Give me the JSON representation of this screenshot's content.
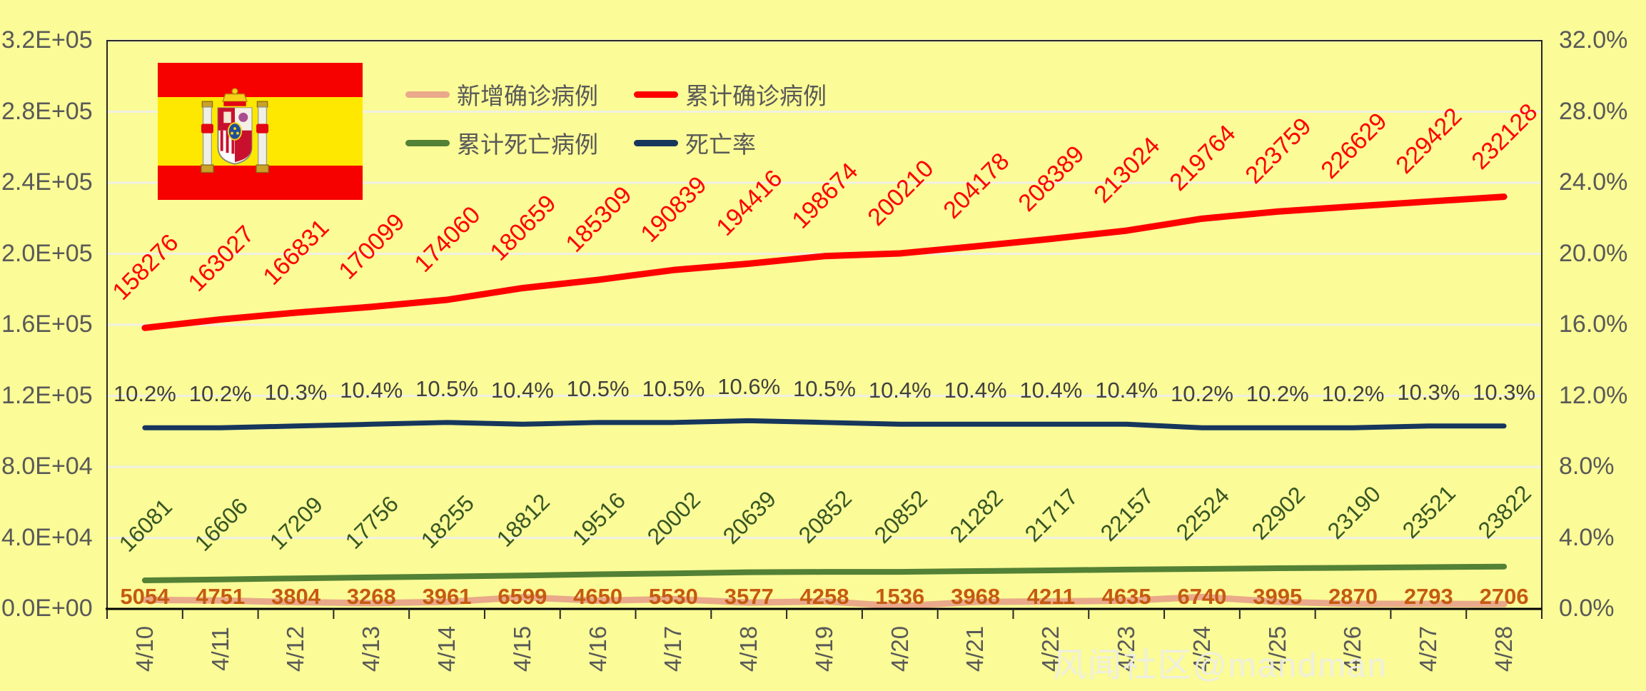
{
  "watermark": "风闻社区@mandman",
  "flag": {
    "country": "Spain"
  },
  "chart_data": {
    "type": "line",
    "x": [
      "4/10",
      "4/11",
      "4/12",
      "4/13",
      "4/14",
      "4/15",
      "4/16",
      "4/17",
      "4/18",
      "4/19",
      "4/20",
      "4/21",
      "4/22",
      "4/23",
      "4/24",
      "4/25",
      "4/26",
      "4/27",
      "4/28"
    ],
    "series": [
      {
        "id": "new-confirmed",
        "name": "新增确诊病例",
        "color": "#E9A98A",
        "axis": "left",
        "values": [
          5054,
          4751,
          3804,
          3268,
          3961,
          6599,
          4650,
          5530,
          3577,
          4258,
          1536,
          3968,
          4211,
          4635,
          6740,
          3995,
          2870,
          2793,
          2706
        ]
      },
      {
        "id": "cum-confirmed",
        "name": "累计确诊病例",
        "color": "#FE0000",
        "axis": "left",
        "values": [
          158276,
          163027,
          166831,
          170099,
          174060,
          180659,
          185309,
          190839,
          194416,
          198674,
          200210,
          204178,
          208389,
          213024,
          219764,
          223759,
          226629,
          229422,
          232128
        ]
      },
      {
        "id": "cum-deaths",
        "name": "累计死亡病例",
        "color": "#538135",
        "axis": "left",
        "values": [
          16081,
          16606,
          17209,
          17756,
          18255,
          18812,
          19516,
          20002,
          20639,
          20852,
          20852,
          21282,
          21717,
          22157,
          22524,
          22902,
          23190,
          23521,
          23822
        ]
      },
      {
        "id": "death-rate",
        "name": "死亡率",
        "color": "#16365C",
        "axis": "right",
        "values": [
          10.2,
          10.2,
          10.3,
          10.4,
          10.5,
          10.4,
          10.5,
          10.5,
          10.6,
          10.5,
          10.4,
          10.4,
          10.4,
          10.4,
          10.2,
          10.2,
          10.2,
          10.3,
          10.3
        ],
        "labels": [
          "10.2%",
          "10.2%",
          "10.3%",
          "10.4%",
          "10.5%",
          "10.4%",
          "10.5%",
          "10.5%",
          "10.6%",
          "10.5%",
          "10.4%",
          "10.4%",
          "10.4%",
          "10.4%",
          "10.2%",
          "10.2%",
          "10.2%",
          "10.3%",
          "10.3%"
        ]
      }
    ],
    "left_axis": {
      "ticks": [
        "3.2E+05",
        "2.8E+05",
        "2.4E+05",
        "2.0E+05",
        "1.6E+05",
        "1.2E+05",
        "8.0E+04",
        "4.0E+04",
        "0.0E+00"
      ],
      "min": 0,
      "max": 320000
    },
    "right_axis": {
      "ticks": [
        "32.0%",
        "28.0%",
        "24.0%",
        "20.0%",
        "16.0%",
        "12.0%",
        "8.0%",
        "4.0%",
        "0.0%"
      ],
      "min": 0,
      "max": 32
    },
    "grid": true,
    "legend_position": "top-left-inside"
  }
}
